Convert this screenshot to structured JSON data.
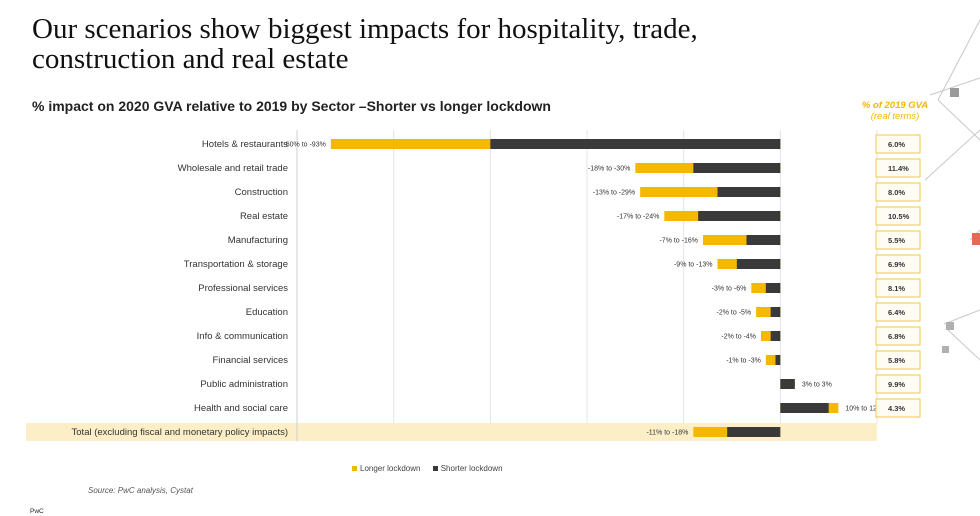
{
  "title": "Our scenarios show biggest impacts for hospitality, trade,\nconstruction and real estate",
  "subtitle": "% impact on 2020 GVA relative to 2019 by Sector –Shorter vs longer lockdown",
  "gva_header": {
    "line1": "% of 2019 GVA",
    "line2": "(real terms)"
  },
  "source": "Source: PwC analysis, Cystat",
  "brand": "PwC",
  "colors": {
    "longer": "#f5b800",
    "shorter": "#3a3a3a",
    "total_band": "#fcefc7",
    "gva_border": "#f2c64a"
  },
  "chart_data": {
    "type": "bar",
    "orientation": "horizontal",
    "stacked_overlay": true,
    "xlim": [
      -100,
      20
    ],
    "grid": true,
    "legend_position": "bottom",
    "categories": [
      "Hotels & restaurants",
      "Wholesale and retail trade",
      "Construction",
      "Real estate",
      "Manufacturing",
      "Transportation & storage",
      "Professional services",
      "Education",
      "Info & communication",
      "Financial services",
      "Public administration",
      "Health and social care",
      "Total (excluding fiscal and monetary policy impacts)"
    ],
    "series": [
      {
        "name": "Longer lockdown",
        "values": [
          -93,
          -30,
          -29,
          -24,
          -16,
          -13,
          -6,
          -5,
          -4,
          -3,
          3,
          12,
          -18
        ]
      },
      {
        "name": "Shorter lockdown",
        "values": [
          -60,
          -18,
          -13,
          -17,
          -7,
          -9,
          -3,
          -2,
          -2,
          -1,
          3,
          10,
          -11
        ]
      }
    ],
    "data_labels": [
      "-60% to -93%",
      "-18% to -30%",
      "-13% to -29%",
      "-17% to -24%",
      "-7% to -16%",
      "-9% to -13%",
      "-3% to -6%",
      "-2% to -5%",
      "-2% to -4%",
      "-1% to -3%",
      "3% to 3%",
      "10% to 12%",
      "-11% to -18%"
    ],
    "gva_share": [
      "6.0%",
      "11.4%",
      "8.0%",
      "10.5%",
      "5.5%",
      "6.9%",
      "8.1%",
      "6.4%",
      "6.8%",
      "5.8%",
      "9.9%",
      "4.3%"
    ]
  }
}
